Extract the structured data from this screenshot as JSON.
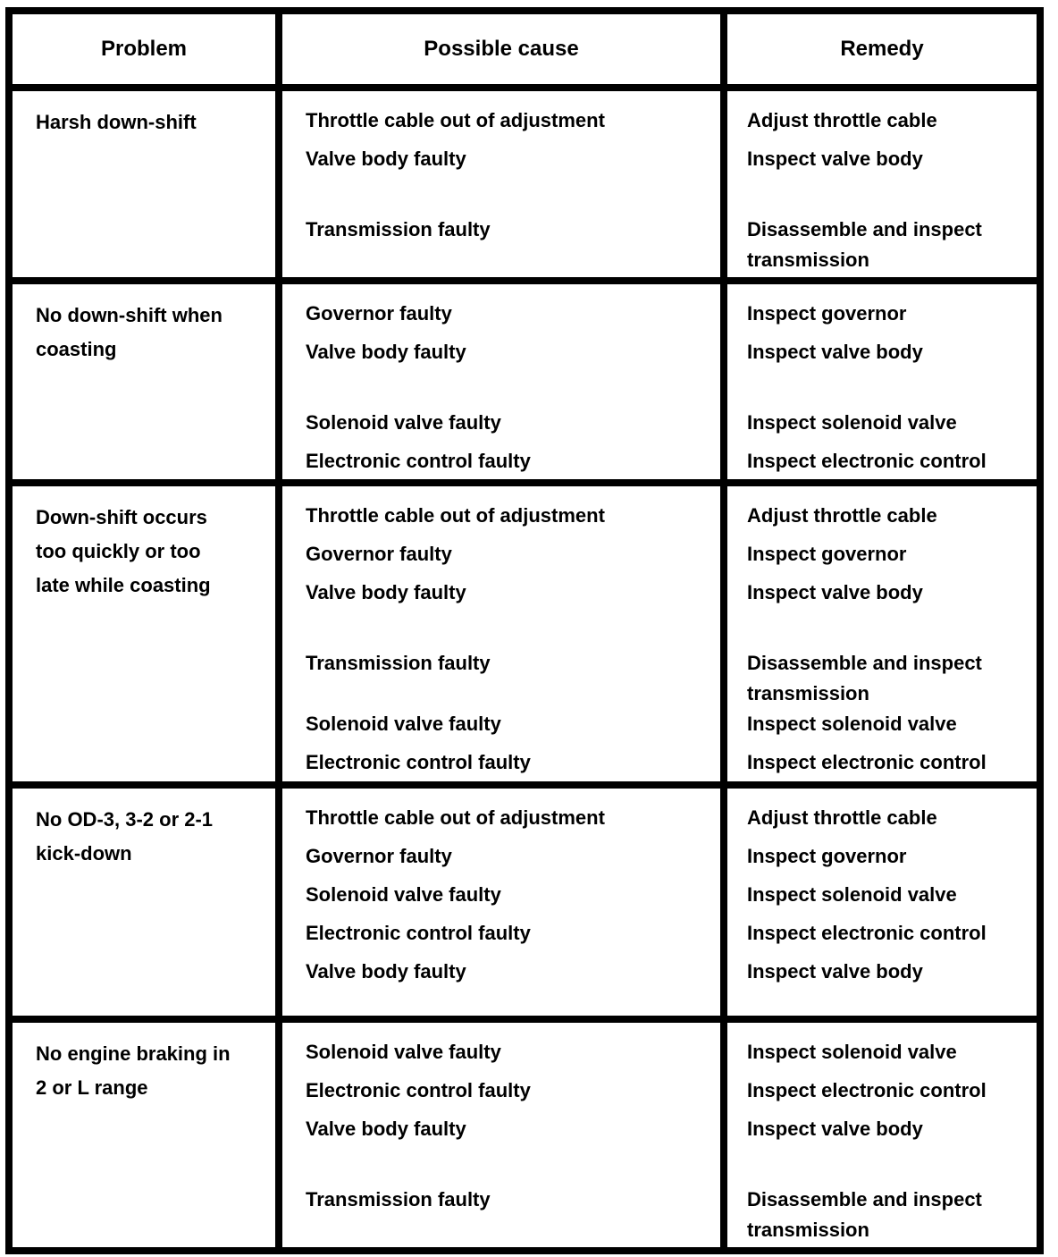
{
  "colors": {
    "border": "#000000",
    "background": "#ffffff",
    "text": "#000000"
  },
  "table": {
    "headers": [
      "Problem",
      "Possible cause",
      "Remedy"
    ],
    "rows": [
      {
        "problem": "Harsh down-shift",
        "items": [
          {
            "cause": "Throttle cable out of adjustment",
            "remedy": "Adjust throttle cable",
            "gap": false
          },
          {
            "cause": "Valve body faulty",
            "remedy": "Inspect valve body",
            "gap": false
          },
          {
            "cause": "Transmission faulty",
            "remedy": "Disassemble and inspect\ntransmission",
            "gap": true
          }
        ]
      },
      {
        "problem": "No down-shift when\ncoasting",
        "items": [
          {
            "cause": "Governor faulty",
            "remedy": "Inspect governor",
            "gap": false
          },
          {
            "cause": "Valve body faulty",
            "remedy": "Inspect valve body",
            "gap": false
          },
          {
            "cause": "Solenoid valve faulty",
            "remedy": "Inspect solenoid valve",
            "gap": true
          },
          {
            "cause": "Electronic control faulty",
            "remedy": "Inspect electronic control",
            "gap": false
          }
        ]
      },
      {
        "problem": "Down-shift occurs\ntoo quickly or too\nlate while coasting",
        "items": [
          {
            "cause": "Throttle cable out of adjustment",
            "remedy": "Adjust throttle cable",
            "gap": false
          },
          {
            "cause": "Governor faulty",
            "remedy": "Inspect governor",
            "gap": false
          },
          {
            "cause": "Valve body faulty",
            "remedy": "Inspect valve body",
            "gap": false
          },
          {
            "cause": "Transmission faulty",
            "remedy": "Disassemble and inspect\ntransmission",
            "gap": true
          },
          {
            "cause": "Solenoid valve faulty",
            "remedy": "Inspect solenoid valve",
            "gap": false
          },
          {
            "cause": "Electronic control faulty",
            "remedy": "Inspect electronic control",
            "gap": false
          }
        ]
      },
      {
        "problem": "No OD-3, 3-2 or 2-1\nkick-down",
        "items": [
          {
            "cause": "Throttle cable out of adjustment",
            "remedy": "Adjust throttle cable",
            "gap": false
          },
          {
            "cause": "Governor faulty",
            "remedy": "Inspect governor",
            "gap": false
          },
          {
            "cause": "Solenoid valve faulty",
            "remedy": "Inspect solenoid valve",
            "gap": false
          },
          {
            "cause": "Electronic control faulty",
            "remedy": "Inspect electronic control",
            "gap": false
          },
          {
            "cause": "Valve body faulty",
            "remedy": "Inspect valve body",
            "gap": false
          }
        ]
      },
      {
        "problem": "No engine braking in\n2 or L range",
        "items": [
          {
            "cause": "Solenoid valve faulty",
            "remedy": "Inspect solenoid valve",
            "gap": false
          },
          {
            "cause": "Electronic control faulty",
            "remedy": "Inspect electronic control",
            "gap": false
          },
          {
            "cause": "Valve body faulty",
            "remedy": "Inspect valve body",
            "gap": false
          },
          {
            "cause": "Transmission faulty",
            "remedy": "Disassemble and inspect\ntransmission",
            "gap": true
          }
        ]
      }
    ]
  }
}
